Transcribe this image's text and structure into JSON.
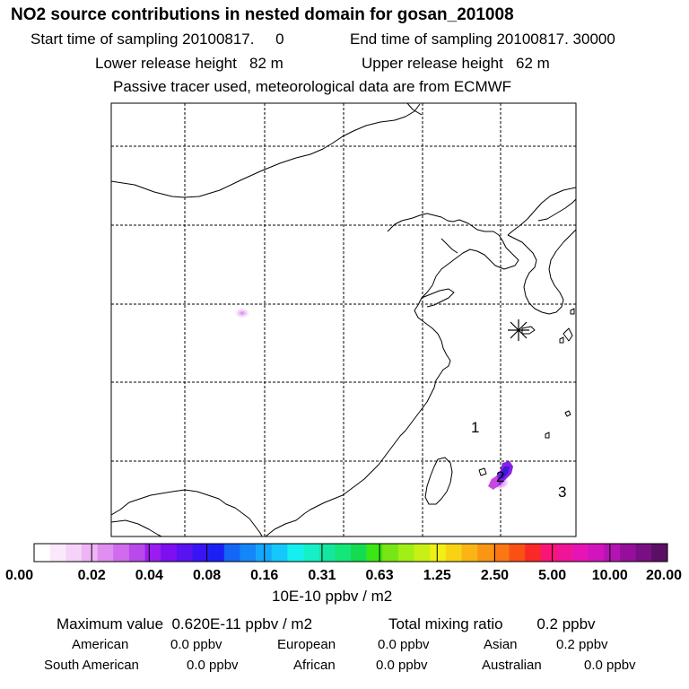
{
  "header": {
    "title": "NO2 source contributions in nested domain for gosan_201008",
    "start_label": "Start time of sampling 20100817.     0",
    "end_label": "End time of sampling 20100817. 30000",
    "lower_label": "Lower release height   82 m",
    "upper_label": "Upper release height   62 m",
    "tracer_label": "Passive tracer used, meteorological data are from ECMWF"
  },
  "map": {
    "station_marker": "asterisk-icon",
    "region_labels": [
      "1",
      "2",
      "3"
    ],
    "plume_colors": [
      "#e27ff0",
      "#8a1fe6",
      "#3a1bd8",
      "#c449e0"
    ]
  },
  "colorbar": {
    "tick_labels": [
      "0.00",
      "0.02",
      "0.04",
      "0.08",
      "0.16",
      "0.31",
      "0.63",
      "1.25",
      "2.50",
      "5.00",
      "10.00",
      "20.00"
    ],
    "colors": [
      "#ffffff",
      "#fbe9fb",
      "#f6d2f8",
      "#efb4f5",
      "#e08ef1",
      "#d06bee",
      "#b84ae9",
      "#9b1cf0",
      "#7d0ff0",
      "#5a12f0",
      "#3a14f5",
      "#1c20f5",
      "#1466f5",
      "#1486f8",
      "#14a8fb",
      "#14c8fb",
      "#14f0f0",
      "#14f0c8",
      "#14e6a0",
      "#14e678",
      "#14dc50",
      "#3ce614",
      "#78e614",
      "#a0f014",
      "#c8f014",
      "#f0f014",
      "#fad214",
      "#fab414",
      "#fa9614",
      "#fa7814",
      "#fa5014",
      "#fa2828",
      "#fa1478",
      "#f01496",
      "#e614b4",
      "#d214be",
      "#b414b4",
      "#960f9b",
      "#780f82",
      "#5a0f64"
    ],
    "unit_label": "10E-10 ppbv / m2"
  },
  "summary": {
    "max_label": "Maximum value  0.620E-11 ppbv / m2",
    "total_label": "Total mixing ratio        0.2 ppbv",
    "row1": [
      {
        "label": "American",
        "value": "0.0 ppbv"
      },
      {
        "label": "European",
        "value": "0.0 ppbv"
      },
      {
        "label": "Asian",
        "value": "0.2 ppbv"
      }
    ],
    "row2": [
      {
        "label": "South American",
        "value": "0.0 ppbv"
      },
      {
        "label": "African",
        "value": "0.0 ppbv"
      },
      {
        "label": "Australian",
        "value": "0.0 ppbv"
      }
    ]
  }
}
